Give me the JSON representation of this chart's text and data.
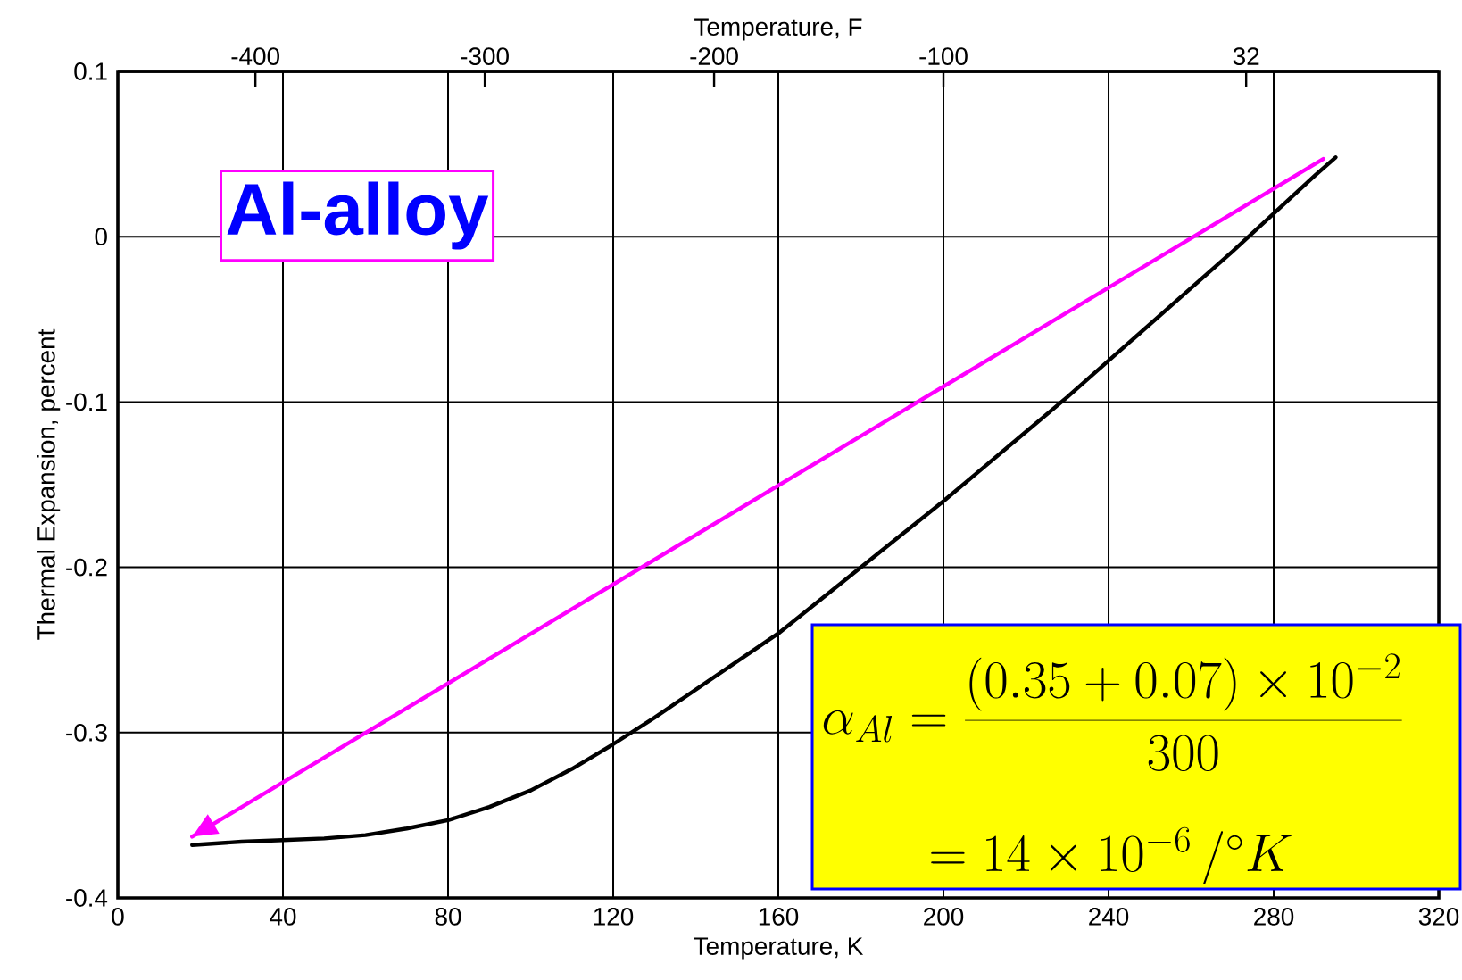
{
  "chart_data": {
    "type": "line",
    "xlabel": "Temperature, K",
    "x2label": "Temperature, F",
    "ylabel": "Thermal Expansion, percent",
    "xlim": [
      0,
      320
    ],
    "xticks": [
      0,
      40,
      80,
      120,
      160,
      200,
      240,
      280,
      320
    ],
    "x2lim": [
      -460,
      116
    ],
    "x2ticks": [
      -400,
      -300,
      -200,
      -100,
      32
    ],
    "ylim": [
      -0.4,
      0.1
    ],
    "yticks": [
      0.1,
      0,
      -0.1,
      -0.2,
      -0.3,
      -0.4
    ],
    "grid": true,
    "series": [
      {
        "color": "#000000",
        "x": [
          18,
          30,
          40,
          50,
          60,
          70,
          80,
          90,
          100,
          110,
          120,
          130,
          140,
          150,
          160,
          170,
          180,
          190,
          200,
          210,
          220,
          230,
          240,
          250,
          260,
          270,
          280,
          290,
          295
        ],
        "values": [
          -0.368,
          -0.366,
          -0.365,
          -0.364,
          -0.362,
          -0.358,
          -0.353,
          -0.345,
          -0.335,
          -0.322,
          -0.307,
          -0.291,
          -0.274,
          -0.257,
          -0.24,
          -0.22,
          -0.2,
          -0.18,
          -0.16,
          -0.139,
          -0.118,
          -0.097,
          -0.075,
          -0.053,
          -0.031,
          -0.009,
          0.014,
          0.037,
          0.048
        ]
      },
      {
        "type": "line",
        "color": "#ff00ff",
        "x": [
          292,
          18
        ],
        "values": [
          0.047,
          -0.363
        ]
      }
    ],
    "annotations": [
      "Al-alloy",
      "\\alpha_{Al}=\\frac{(0.35+0.07)\\times10^{-2}}{300}",
      "=14\\times10^{-6}\\,/{}^{\\circ}K"
    ]
  }
}
